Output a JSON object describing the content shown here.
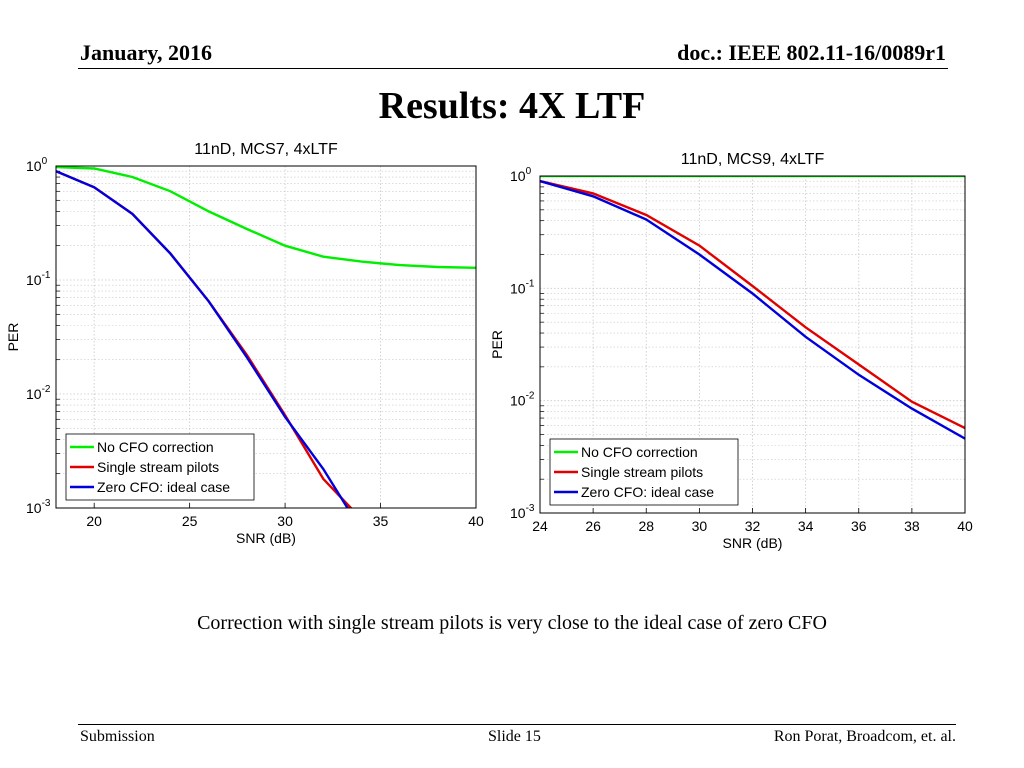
{
  "header": {
    "date": "January, 2016",
    "doc": "doc.: IEEE 802.11-16/0089r1"
  },
  "slide_title": "Results: 4X LTF",
  "caption": "Correction with single stream pilots is very close to the ideal case of zero CFO",
  "footer": {
    "left": "Submission",
    "center": "Slide 15",
    "right": "Ron Porat, Broadcom, et. al."
  },
  "colors": {
    "no_cfo": "#00ee00",
    "single_stream": "#e00000",
    "zero_cfo": "#0000dd",
    "grid": "#c8c8c8"
  },
  "chart_data": [
    {
      "type": "line",
      "title": "11nD, MCS7, 4xLTF",
      "xlabel": "SNR (dB)",
      "ylabel": "PER",
      "xlim": [
        18,
        40
      ],
      "ylim": [
        0.001,
        1
      ],
      "yscale": "log",
      "x_ticks": [
        20,
        25,
        30,
        35,
        40
      ],
      "y_ticks": [
        1,
        0.1,
        0.01,
        0.001
      ],
      "y_tick_labels": [
        [
          "10",
          "0"
        ],
        [
          "10",
          "-1"
        ],
        [
          "10",
          "-2"
        ],
        [
          "10",
          "-3"
        ]
      ],
      "grid": true,
      "legend_position": "bottom-left",
      "series": [
        {
          "name": "No CFO correction",
          "color": "#00ee00",
          "x": [
            18,
            20,
            22,
            24,
            26,
            28,
            30,
            32,
            34,
            36,
            38,
            40
          ],
          "y": [
            0.98,
            0.95,
            0.8,
            0.6,
            0.4,
            0.28,
            0.2,
            0.16,
            0.145,
            0.135,
            0.13,
            0.128
          ]
        },
        {
          "name": "Single stream pilots",
          "color": "#e00000",
          "x": [
            18,
            20,
            22,
            24,
            26,
            28,
            30,
            32,
            33.5
          ],
          "y": [
            0.9,
            0.65,
            0.38,
            0.17,
            0.065,
            0.022,
            0.0065,
            0.0018,
            0.00098
          ]
        },
        {
          "name": "Zero CFO: ideal case",
          "color": "#0000dd",
          "x": [
            18,
            20,
            22,
            24,
            26,
            28,
            30,
            32,
            33.3
          ],
          "y": [
            0.9,
            0.65,
            0.38,
            0.17,
            0.065,
            0.021,
            0.0063,
            0.0022,
            0.00098
          ]
        }
      ]
    },
    {
      "type": "line",
      "title": "11nD, MCS9, 4xLTF",
      "xlabel": "SNR (dB)",
      "ylabel": "PER",
      "xlim": [
        24,
        40
      ],
      "ylim": [
        0.001,
        1
      ],
      "yscale": "log",
      "x_ticks": [
        24,
        26,
        28,
        30,
        32,
        34,
        36,
        38,
        40
      ],
      "y_ticks": [
        1,
        0.1,
        0.01,
        0.001
      ],
      "y_tick_labels": [
        [
          "10",
          "0"
        ],
        [
          "10",
          "-1"
        ],
        [
          "10",
          "-2"
        ],
        [
          "10",
          "-3"
        ]
      ],
      "grid": true,
      "legend_position": "bottom-left",
      "series": [
        {
          "name": "No CFO correction",
          "color": "#00ee00",
          "x": [
            24,
            26,
            28,
            30,
            32,
            34,
            36,
            38,
            40
          ],
          "y": [
            1,
            1,
            1,
            1,
            1,
            1,
            1,
            1,
            1
          ]
        },
        {
          "name": "Single stream pilots",
          "color": "#e00000",
          "x": [
            24,
            26,
            28,
            30,
            32,
            34,
            36,
            38,
            40
          ],
          "y": [
            0.9,
            0.7,
            0.45,
            0.24,
            0.105,
            0.045,
            0.021,
            0.0098,
            0.0057
          ]
        },
        {
          "name": "Zero CFO: ideal case",
          "color": "#0000dd",
          "x": [
            24,
            26,
            28,
            30,
            32,
            34,
            36,
            38,
            40
          ],
          "y": [
            0.9,
            0.66,
            0.41,
            0.2,
            0.09,
            0.037,
            0.017,
            0.0085,
            0.0046
          ]
        }
      ]
    }
  ]
}
